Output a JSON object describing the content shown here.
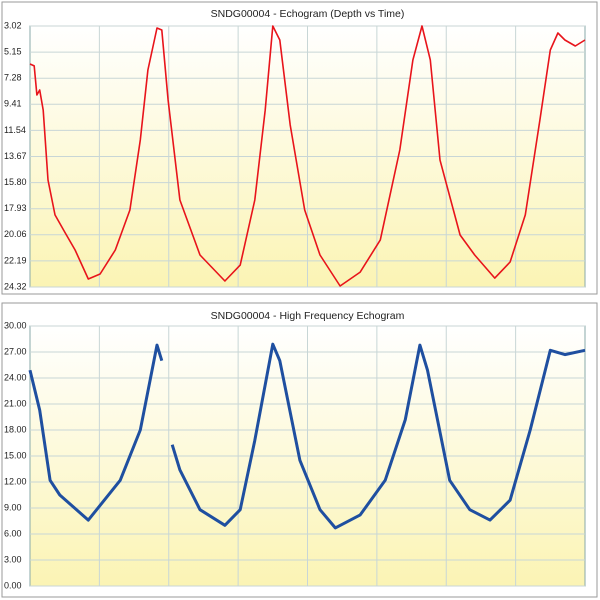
{
  "chart_data": [
    {
      "type": "line",
      "title": "SNDG00004 - Echogram (Depth vs Time)",
      "inverted": true,
      "ylim": [
        3.02,
        24.32
      ],
      "yticks": [
        3.02,
        5.15,
        7.28,
        9.41,
        11.54,
        13.67,
        {
          "value": 15.8,
          "label": "15.80"
        },
        17.93,
        20.06,
        22.19,
        24.32
      ],
      "xlim": [
        0,
        8
      ],
      "xticks": [
        1,
        2,
        3,
        4,
        5,
        6,
        7
      ],
      "grid": true,
      "series": [
        {
          "color": "#e8141b",
          "x": [
            0,
            0.06,
            0.1,
            0.14,
            0.19,
            0.26,
            0.36,
            0.5,
            0.65,
            0.84,
            1.01,
            1.23,
            1.44,
            1.59,
            1.7,
            1.83,
            1.9,
            1.99,
            2.16,
            2.45,
            2.81,
            3.03,
            3.24,
            3.39,
            3.5,
            3.6,
            3.75,
            3.96,
            4.18,
            4.47,
            4.76,
            5.05,
            5.33,
            5.52,
            5.65,
            5.77,
            5.91,
            6.2,
            6.41,
            6.7,
            6.92,
            7.14,
            7.35,
            7.5,
            7.61,
            7.71,
            7.86,
            8
          ],
          "values": [
            6.12,
            6.28,
            8.65,
            8.24,
            9.88,
            15.59,
            18.44,
            19.83,
            21.3,
            23.67,
            23.26,
            21.3,
            18.04,
            12.32,
            6.61,
            3.18,
            3.35,
            9.06,
            17.22,
            21.71,
            23.83,
            22.53,
            17.22,
            9.88,
            3.02,
            4.16,
            11.1,
            18.04,
            21.71,
            24.24,
            23.1,
            20.48,
            13.14,
            5.79,
            3.02,
            5.79,
            13.96,
            20.08,
            21.71,
            23.59,
            22.28,
            18.44,
            10.69,
            4.98,
            3.59,
            4.16,
            4.65,
            4.16
          ]
        }
      ]
    },
    {
      "type": "line",
      "title": "SNDG00004 - High Frequency Echogram",
      "inverted": false,
      "ylim": [
        0,
        30
      ],
      "yticks": [
        {
          "value": 0,
          "label": "0.00"
        },
        {
          "value": 3,
          "label": "3.00"
        },
        {
          "value": 6,
          "label": "6.00"
        },
        {
          "value": 9,
          "label": "9.00"
        },
        {
          "value": 12,
          "label": "12.00"
        },
        {
          "value": 15,
          "label": "15.00"
        },
        {
          "value": 18,
          "label": "18.00"
        },
        {
          "value": 21,
          "label": "21.00"
        },
        {
          "value": 24,
          "label": "24.00"
        },
        {
          "value": 27,
          "label": "27.00"
        },
        {
          "value": 30,
          "label": "30.00"
        }
      ],
      "xlim": [
        0,
        8
      ],
      "xticks": [
        1,
        2,
        3,
        4,
        5,
        6,
        7
      ],
      "grid": true,
      "series": [
        {
          "color": "#1f4fa0",
          "x": [
            0,
            0.14,
            0.29,
            0.43,
            0.84,
            1.3,
            1.59,
            1.83,
            1.9,
            1.95,
            2.05,
            2.16,
            2.45,
            2.81,
            3.03,
            3.24,
            3.5,
            3.6,
            3.89,
            4.18,
            4.4,
            4.76,
            5.12,
            5.41,
            5.62,
            5.73,
            6.05,
            6.34,
            6.63,
            6.92,
            7.21,
            7.5,
            7.71,
            8
          ],
          "values": [
            24.9,
            20.3,
            12.2,
            10.5,
            7.6,
            12.2,
            18,
            27.8,
            26,
            null,
            16.3,
            13.4,
            8.8,
            7,
            8.8,
            16.8,
            27.9,
            26,
            14.5,
            8.8,
            6.7,
            8.2,
            12.2,
            19.2,
            27.8,
            24.9,
            12.2,
            8.8,
            7.6,
            9.9,
            18,
            27.2,
            26.7,
            27.2
          ]
        }
      ]
    }
  ]
}
